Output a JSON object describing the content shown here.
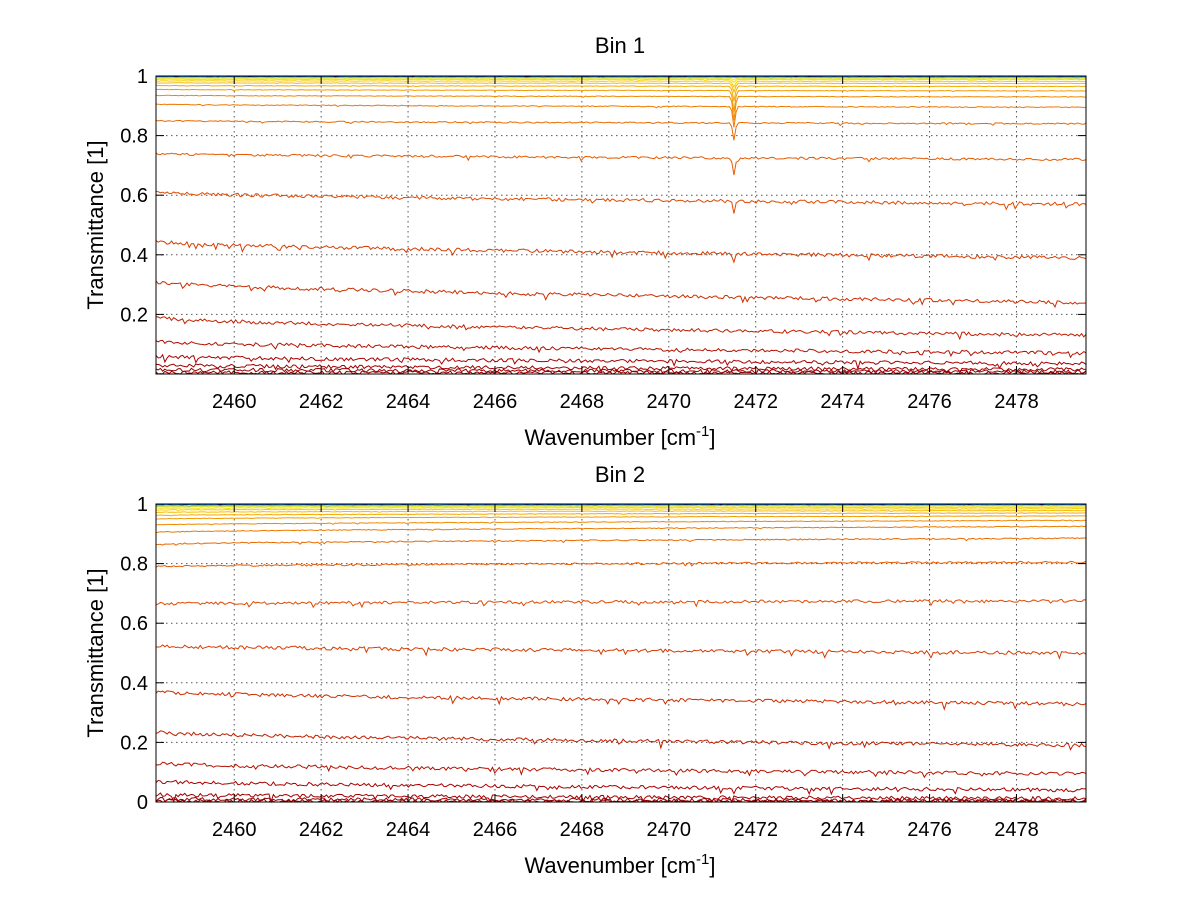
{
  "chart_data": [
    {
      "type": "line",
      "title": "Bin 1",
      "xlabel": "Wavenumber [cm",
      "xlabel_sup": "-1",
      "xlabel_end": "]",
      "ylabel": "Transmittance [1]",
      "xlim": [
        2458.2,
        2479.6
      ],
      "ylim": [
        0.0,
        1.0
      ],
      "xticks": [
        2460,
        2462,
        2464,
        2466,
        2468,
        2470,
        2472,
        2474,
        2476,
        2478
      ],
      "xtick_labels": [
        "2460",
        "2462",
        "2464",
        "2466",
        "2468",
        "2470",
        "2472",
        "2474",
        "2476",
        "2478"
      ],
      "yticks": [
        0.2,
        0.4,
        0.6,
        0.8,
        1.0
      ],
      "ytick_labels": [
        "0.2",
        "0.4",
        "0.6",
        "0.8",
        "1"
      ],
      "grid": true,
      "line_absorption_center": 2471.5,
      "series": [
        {
          "start": 0.005,
          "end": 0.003,
          "depth": 0.0,
          "color": "#8b0000"
        },
        {
          "start": 0.015,
          "end": 0.008,
          "depth": 0.0,
          "color": "#960000"
        },
        {
          "start": 0.03,
          "end": 0.015,
          "depth": 0.0,
          "color": "#a00000"
        },
        {
          "start": 0.06,
          "end": 0.035,
          "depth": 0.0,
          "color": "#aa0000"
        },
        {
          "start": 0.11,
          "end": 0.07,
          "depth": 0.0,
          "color": "#b41200"
        },
        {
          "start": 0.19,
          "end": 0.13,
          "depth": 0.005,
          "color": "#c02000"
        },
        {
          "start": 0.31,
          "end": 0.24,
          "depth": 0.01,
          "color": "#cc2e00"
        },
        {
          "start": 0.445,
          "end": 0.39,
          "depth": 0.025,
          "color": "#d63c00"
        },
        {
          "start": 0.61,
          "end": 0.57,
          "depth": 0.04,
          "color": "#e04a00"
        },
        {
          "start": 0.74,
          "end": 0.72,
          "depth": 0.06,
          "color": "#e65a00"
        },
        {
          "start": 0.85,
          "end": 0.84,
          "depth": 0.06,
          "color": "#ea6a00"
        },
        {
          "start": 0.905,
          "end": 0.895,
          "depth": 0.07,
          "color": "#ee7a00"
        },
        {
          "start": 0.935,
          "end": 0.93,
          "depth": 0.08,
          "color": "#f08800"
        },
        {
          "start": 0.955,
          "end": 0.95,
          "depth": 0.07,
          "color": "#f39a00"
        },
        {
          "start": 0.968,
          "end": 0.965,
          "depth": 0.05,
          "color": "#f6aa00"
        },
        {
          "start": 0.977,
          "end": 0.975,
          "depth": 0.03,
          "color": "#f8bc00"
        },
        {
          "start": 0.984,
          "end": 0.982,
          "depth": 0.02,
          "color": "#fbcc00"
        },
        {
          "start": 0.989,
          "end": 0.988,
          "depth": 0.01,
          "color": "#fddc00"
        },
        {
          "start": 0.993,
          "end": 0.992,
          "depth": 0.005,
          "color": "#e8e830"
        },
        {
          "start": 0.996,
          "end": 0.995,
          "depth": 0.0,
          "color": "#80d080"
        },
        {
          "start": 0.998,
          "end": 0.997,
          "depth": 0.0,
          "color": "#20b0e0"
        },
        {
          "start": 0.999,
          "end": 0.999,
          "depth": 0.0,
          "color": "#0060d0"
        },
        {
          "start": 1.0,
          "end": 1.0,
          "depth": 0.0,
          "color": "#00008b"
        }
      ]
    },
    {
      "type": "line",
      "title": "Bin 2",
      "xlabel": "Wavenumber [cm",
      "xlabel_sup": "-1",
      "xlabel_end": "]",
      "ylabel": "Transmittance [1]",
      "xlim": [
        2458.2,
        2479.6
      ],
      "ylim": [
        0.0,
        1.0
      ],
      "xticks": [
        2460,
        2462,
        2464,
        2466,
        2468,
        2470,
        2472,
        2474,
        2476,
        2478
      ],
      "xtick_labels": [
        "2460",
        "2462",
        "2464",
        "2466",
        "2468",
        "2470",
        "2472",
        "2474",
        "2476",
        "2478"
      ],
      "yticks": [
        0.0,
        0.2,
        0.4,
        0.6,
        0.8,
        1.0
      ],
      "ytick_labels": [
        "0",
        "0.2",
        "0.4",
        "0.6",
        "0.8",
        "1"
      ],
      "grid": true,
      "line_absorption_center": null,
      "series": [
        {
          "start": 0.003,
          "end": 0.002,
          "depth": 0.0,
          "color": "#8b0000"
        },
        {
          "start": 0.01,
          "end": 0.005,
          "depth": 0.0,
          "color": "#960000"
        },
        {
          "start": 0.025,
          "end": 0.012,
          "depth": 0.0,
          "color": "#a00000"
        },
        {
          "start": 0.07,
          "end": 0.04,
          "depth": 0.0,
          "color": "#aa0000"
        },
        {
          "start": 0.13,
          "end": 0.095,
          "depth": 0.0,
          "color": "#b41200"
        },
        {
          "start": 0.235,
          "end": 0.19,
          "depth": 0.0,
          "color": "#c02000"
        },
        {
          "start": 0.37,
          "end": 0.33,
          "depth": 0.0,
          "color": "#cc2e00"
        },
        {
          "start": 0.525,
          "end": 0.5,
          "depth": 0.0,
          "color": "#d63c00"
        },
        {
          "start": 0.665,
          "end": 0.675,
          "depth": 0.0,
          "color": "#e04a00"
        },
        {
          "start": 0.79,
          "end": 0.805,
          "depth": 0.0,
          "color": "#e65a00"
        },
        {
          "start": 0.865,
          "end": 0.885,
          "depth": 0.0,
          "color": "#ea6a00"
        },
        {
          "start": 0.905,
          "end": 0.925,
          "depth": 0.0,
          "color": "#ee7a00"
        },
        {
          "start": 0.93,
          "end": 0.945,
          "depth": 0.0,
          "color": "#f08800"
        },
        {
          "start": 0.95,
          "end": 0.96,
          "depth": 0.0,
          "color": "#f39a00"
        },
        {
          "start": 0.962,
          "end": 0.97,
          "depth": 0.0,
          "color": "#f6aa00"
        },
        {
          "start": 0.972,
          "end": 0.978,
          "depth": 0.0,
          "color": "#f8bc00"
        },
        {
          "start": 0.98,
          "end": 0.984,
          "depth": 0.0,
          "color": "#fbcc00"
        },
        {
          "start": 0.986,
          "end": 0.989,
          "depth": 0.0,
          "color": "#fddc00"
        },
        {
          "start": 0.991,
          "end": 0.993,
          "depth": 0.0,
          "color": "#e8e830"
        },
        {
          "start": 0.994,
          "end": 0.996,
          "depth": 0.0,
          "color": "#80d080"
        },
        {
          "start": 0.997,
          "end": 0.998,
          "depth": 0.0,
          "color": "#20b0e0"
        },
        {
          "start": 0.999,
          "end": 0.999,
          "depth": 0.0,
          "color": "#0060d0"
        },
        {
          "start": 1.0,
          "end": 1.0,
          "depth": 0.0,
          "color": "#00008b"
        }
      ]
    }
  ]
}
